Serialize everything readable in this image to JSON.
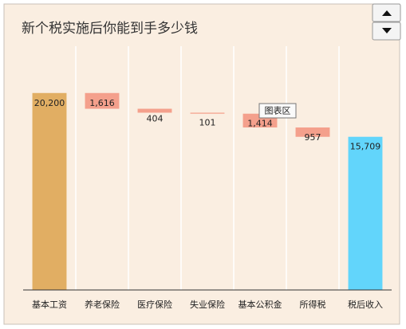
{
  "chart_data": {
    "type": "waterfall",
    "title": "新个税实施后你能到手多少钱",
    "categories": [
      "基本工资",
      "养老保险",
      "医疗保险",
      "失业保险",
      "基本公积金",
      "所得税",
      "税后收入"
    ],
    "values": [
      20200,
      1616,
      404,
      101,
      1414,
      957,
      15709
    ],
    "value_labels": [
      "20,200",
      "1,616",
      "404",
      "101",
      "1,414",
      "957",
      "15,709"
    ],
    "colors": {
      "start": "#e1ae63",
      "decrease": "#f4a08c",
      "total": "#62d5fb"
    },
    "ylim": [
      0,
      25000
    ],
    "tooltip": "图表区"
  }
}
